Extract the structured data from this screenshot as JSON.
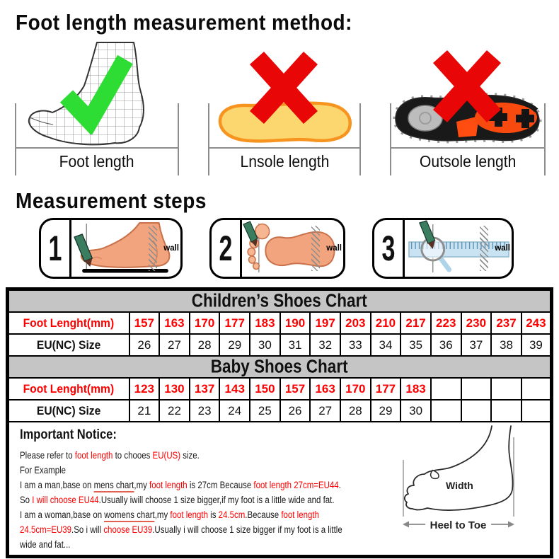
{
  "colors": {
    "red_text": "#fe0000",
    "cross_red": "#e80606",
    "check_green": "#2edd33",
    "chart_header_bg": "#c5c5c5",
    "underline_red": "#e2604e",
    "skin": "#f2a47e",
    "pencil_green": "#3a7d5f",
    "insole_fill": "#fcd76f",
    "insole_stroke": "#f79420",
    "ruler_fill": "#c9e3f3",
    "bracket_grey": "#8d8d8d"
  },
  "header": {
    "title": "Foot length measurement method:"
  },
  "methods": [
    {
      "label": "Foot length",
      "mark": "check-icon"
    },
    {
      "label": "Lnsole length",
      "mark": "cross-icon"
    },
    {
      "label": "Outsole length",
      "mark": "cross-icon"
    }
  ],
  "steps_section": {
    "title": "Measurement steps",
    "wall_label": "wall",
    "steps": [
      {
        "number": "1"
      },
      {
        "number": "2"
      },
      {
        "number": "3"
      }
    ]
  },
  "tables": {
    "children": {
      "title": "Children’s Shoes Chart",
      "row1_label": "Foot Lenght(mm)",
      "row2_label": "EU(NC) Size",
      "foot_lengths": [
        157,
        163,
        170,
        177,
        183,
        190,
        197,
        203,
        210,
        217,
        223,
        230,
        237,
        243
      ],
      "sizes": [
        26,
        27,
        28,
        29,
        30,
        31,
        32,
        33,
        34,
        35,
        36,
        37,
        38,
        39
      ]
    },
    "baby": {
      "title": "Baby Shoes Chart",
      "row1_label": "Foot Lenght(mm)",
      "row2_label": "EU(NC) Size",
      "foot_lengths": [
        123,
        130,
        137,
        143,
        150,
        157,
        163,
        170,
        177,
        183
      ],
      "sizes": [
        21,
        22,
        23,
        24,
        25,
        26,
        27,
        28,
        29,
        30
      ]
    }
  },
  "notice": {
    "title": "Important Notice:",
    "lines": [
      [
        {
          "t": "Please refer to "
        },
        {
          "t": "foot length",
          "r": 1
        },
        {
          "t": " to chooes "
        },
        {
          "t": "EU(US)",
          "r": 1
        },
        {
          "t": " size."
        }
      ],
      [
        {
          "t": "For Example"
        }
      ],
      [
        {
          "t": "I am a man,base on "
        },
        {
          "t": "mens chart",
          "u": 1
        },
        {
          "t": ",my "
        },
        {
          "t": "foot length",
          "r": 1
        },
        {
          "t": " is 27cm Because "
        },
        {
          "t": "foot length 27cm=EU44",
          "r": 1
        },
        {
          "t": "."
        }
      ],
      [
        {
          "t": "So "
        },
        {
          "t": "I will choose EU44",
          "r": 1
        },
        {
          "t": ".Usually iwill choose 1 size bigger,if my foot is a little wide and fat."
        }
      ],
      [
        {
          "t": "I am a woman,base on "
        },
        {
          "t": "womens chart",
          "u": 1
        },
        {
          "t": ",my "
        },
        {
          "t": "foot length",
          "r": 1
        },
        {
          "t": " is "
        },
        {
          "t": "24.5cm",
          "r": 1
        },
        {
          "t": ".Because "
        },
        {
          "t": "foot length",
          "r": 1
        }
      ],
      [
        {
          "t": "24.5cm=EU39",
          "r": 1
        },
        {
          "t": ".So i will "
        },
        {
          "t": "choose EU39",
          "r": 1
        },
        {
          "t": ".Usually i will choose 1 size bigger if my foot is a little"
        }
      ],
      [
        {
          "t": "wide and fat..."
        }
      ]
    ],
    "diagram": {
      "width_label": "Width",
      "heel_to_toe_label": "Heel to Toe"
    }
  }
}
